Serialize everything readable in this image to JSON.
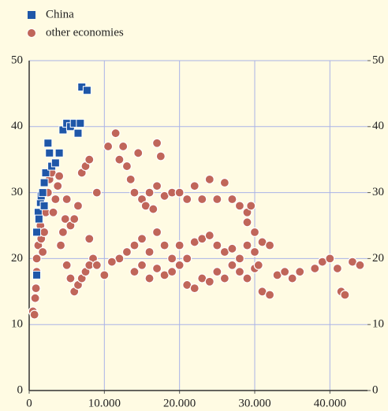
{
  "chart_data": {
    "type": "scatter",
    "xlim": [
      0,
      45000
    ],
    "ylim": [
      0,
      50
    ],
    "xticks": [
      0,
      {
        "value": 10000,
        "label": "10.000"
      },
      {
        "value": 20000,
        "label": "20.000"
      },
      {
        "value": 30000,
        "label": "30.000"
      },
      {
        "value": 40000,
        "label": "40.000"
      }
    ],
    "yticks": [
      0,
      10,
      20,
      30,
      40,
      50
    ],
    "y2lim": [
      0,
      50
    ],
    "y2ticks": [
      0,
      10,
      20,
      30,
      40,
      50
    ],
    "grid": true,
    "legend": "top-left",
    "series": [
      {
        "name": "China",
        "color": "#1f57a8",
        "x": [
          1000,
          1000,
          1200,
          1300,
          1500,
          1600,
          1800,
          2000,
          2000,
          2200,
          2500,
          2700,
          3000,
          3500,
          4000,
          4500,
          5000,
          5500,
          6000,
          6500,
          6800,
          7000,
          7700
        ],
        "values": [
          17.5,
          24,
          27,
          26,
          28.5,
          29.5,
          30,
          31.5,
          28,
          33,
          37.5,
          36,
          34,
          34.5,
          36,
          39.5,
          40.5,
          40,
          40.5,
          39,
          40.5,
          46,
          45.5
        ]
      },
      {
        "name": "other economies",
        "color": "#c0665a",
        "x": [
          500,
          700,
          800,
          900,
          1000,
          1000,
          1200,
          1300,
          1500,
          1600,
          1800,
          2000,
          2200,
          2500,
          2700,
          3000,
          3200,
          3500,
          3800,
          4000,
          4200,
          4500,
          4800,
          5000,
          5500,
          6000,
          6500,
          7000,
          7500,
          8000,
          8500,
          5000,
          5500,
          6000,
          6500,
          7000,
          7500,
          8000,
          9000,
          10000,
          10500,
          11500,
          12000,
          12500,
          13000,
          13500,
          14000,
          14500,
          15000,
          15500,
          16000,
          16500,
          17000,
          17500,
          17000,
          18000,
          19000,
          20000,
          21000,
          22000,
          23000,
          24000,
          25000,
          26000,
          27000,
          28000,
          29000,
          29500,
          12000,
          13000,
          14000,
          15000,
          16000,
          17000,
          18000,
          19000,
          20000,
          21000,
          22000,
          23000,
          24000,
          25000,
          26000,
          27000,
          28000,
          29000,
          30000,
          31000,
          32000,
          14000,
          15000,
          16000,
          17000,
          18000,
          19000,
          20000,
          21000,
          22000,
          23000,
          24000,
          25000,
          26000,
          27000,
          28000,
          29000,
          30000,
          31000,
          32000,
          33000,
          34000,
          35000,
          36000,
          38000,
          39000,
          40000,
          41000,
          41500,
          42000,
          43000,
          44000,
          30000,
          30500,
          29000,
          11000,
          9000,
          8000
        ],
        "values": [
          12,
          11.5,
          14,
          15.5,
          18,
          20,
          22,
          24,
          25,
          23,
          21,
          24,
          27,
          30,
          32,
          33,
          27,
          29,
          31,
          32.5,
          22,
          24,
          26,
          29,
          25,
          26,
          28,
          33,
          34,
          35,
          20,
          19,
          17,
          15,
          16,
          17,
          18,
          19,
          19,
          17.5,
          37,
          39,
          35,
          37,
          34,
          32,
          30,
          36,
          29,
          28,
          30,
          27.5,
          37.5,
          35.5,
          31,
          29.5,
          30,
          30,
          29,
          31,
          29,
          32,
          29,
          31.5,
          29,
          28,
          27,
          28,
          20,
          21,
          22,
          23,
          21,
          24,
          22,
          20,
          22,
          20,
          22.5,
          23,
          23.5,
          22,
          21,
          21.5,
          20,
          22,
          21,
          22.5,
          22,
          18,
          19,
          17,
          18.5,
          17.5,
          18,
          19,
          16,
          15.5,
          17,
          16.5,
          18,
          17,
          19,
          18,
          17,
          18.5,
          15,
          14.5,
          17.5,
          18,
          17,
          18,
          18.5,
          19.5,
          20,
          18.5,
          15,
          14.5,
          19.5,
          19,
          24,
          19,
          25.5,
          19.5,
          30,
          23
        ]
      }
    ]
  }
}
